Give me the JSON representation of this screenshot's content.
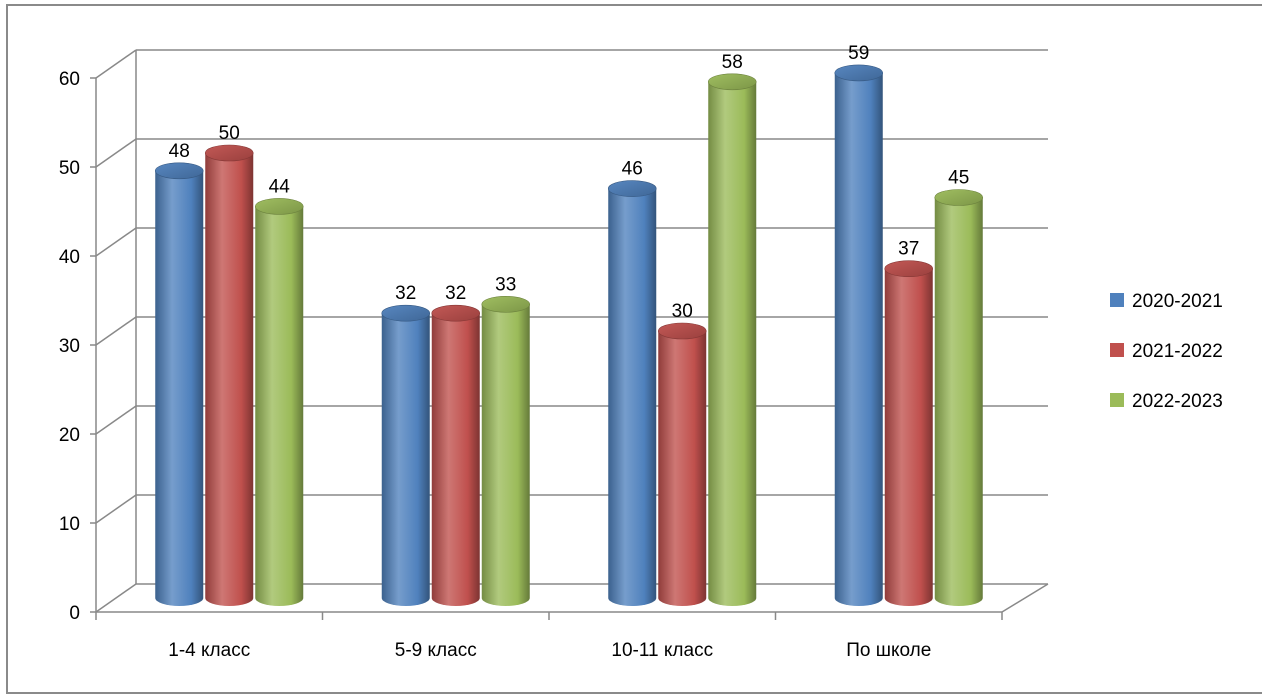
{
  "chart_data": {
    "type": "bar",
    "style": "3d-cylinder",
    "categories": [
      "1-4 класс",
      "5-9  класс",
      "10-11 класс",
      "По школе"
    ],
    "series": [
      {
        "name": "2020-2021",
        "color": "#4F81BD",
        "values": [
          48,
          32,
          46,
          59
        ]
      },
      {
        "name": "2021-2022",
        "color": "#C0504D",
        "values": [
          50,
          32,
          30,
          37
        ]
      },
      {
        "name": "2022-2023",
        "color": "#9BBB59",
        "values": [
          44,
          33,
          58,
          45
        ]
      }
    ],
    "ylim": [
      0,
      60
    ],
    "yticks": [
      0,
      10,
      20,
      30,
      40,
      50,
      60
    ],
    "grid": true,
    "legend": "right",
    "title": "",
    "xlabel": "",
    "ylabel": ""
  }
}
